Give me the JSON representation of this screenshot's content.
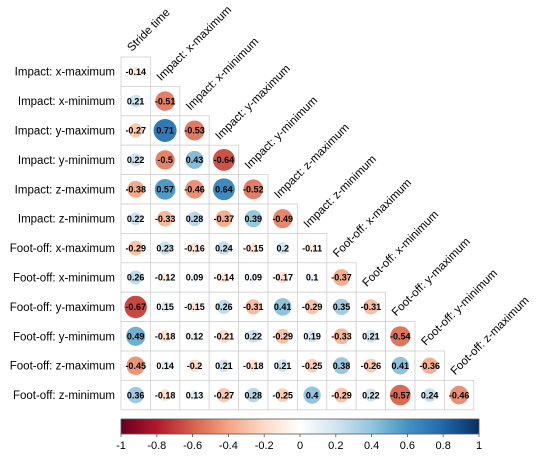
{
  "chart_data": {
    "type": "heatmap",
    "subtype": "lower-triangle correlation matrix (circle glyphs)",
    "variables": [
      "Stride time",
      "Impact: x-maximum",
      "Impact: x-minimum",
      "Impact: y-maximum",
      "Impact: y-minimum",
      "Impact: z-maximum",
      "Impact: z-minimum",
      "Foot-off: x-maximum",
      "Foot-off: x-minimum",
      "Foot-off: y-maximum",
      "Foot-off: y-minimum",
      "Foot-off: z-maximum",
      "Foot-off: z-minimum"
    ],
    "row_labels": [
      "Impact: x-maximum",
      "Impact: x-minimum",
      "Impact: y-maximum",
      "Impact: y-minimum",
      "Impact: z-maximum",
      "Impact: z-minimum",
      "Foot-off: x-maximum",
      "Foot-off: x-minimum",
      "Foot-off: y-maximum",
      "Foot-off: y-minimum",
      "Foot-off: z-maximum",
      "Foot-off: z-minimum"
    ],
    "column_labels": [
      "Stride time",
      "Impact: x-maximum",
      "Impact: x-minimum",
      "Impact: y-maximum",
      "Impact: y-minimum",
      "Impact: z-maximum",
      "Impact: z-minimum",
      "Foot-off: x-maximum",
      "Foot-off: x-minimum",
      "Foot-off: y-maximum",
      "Foot-off: y-minimum",
      "Foot-off: z-maximum"
    ],
    "values": [
      [
        -0.14
      ],
      [
        0.21,
        -0.51
      ],
      [
        -0.27,
        0.71,
        -0.53
      ],
      [
        0.22,
        -0.5,
        0.43,
        -0.64
      ],
      [
        -0.38,
        0.57,
        -0.46,
        0.64,
        -0.52
      ],
      [
        0.22,
        -0.33,
        0.28,
        -0.37,
        0.39,
        -0.49
      ],
      [
        -0.29,
        0.23,
        -0.16,
        0.24,
        -0.15,
        0.2,
        -0.11
      ],
      [
        0.26,
        -0.12,
        0.09,
        -0.14,
        0.09,
        -0.17,
        0.1,
        -0.37
      ],
      [
        -0.67,
        0.15,
        -0.15,
        0.26,
        -0.31,
        0.41,
        -0.29,
        0.35,
        -0.31
      ],
      [
        0.49,
        -0.18,
        0.12,
        -0.21,
        0.22,
        -0.29,
        0.19,
        -0.33,
        0.21,
        -0.54
      ],
      [
        -0.45,
        0.14,
        -0.2,
        0.21,
        -0.18,
        0.21,
        -0.25,
        0.38,
        -0.26,
        0.41,
        -0.36
      ],
      [
        0.36,
        -0.18,
        0.13,
        -0.27,
        0.28,
        -0.25,
        0.4,
        -0.29,
        0.22,
        -0.57,
        0.24,
        -0.46
      ]
    ],
    "value_labels": [
      [
        "-0.14"
      ],
      [
        "0.21",
        "-0.51"
      ],
      [
        "-0.27",
        "0.71",
        "-0.53"
      ],
      [
        "0.22",
        "-0.5",
        "0.43",
        "-0.64"
      ],
      [
        "-0.38",
        "0.57",
        "-0.46",
        "0.64",
        "-0.52"
      ],
      [
        "0.22",
        "-0.33",
        "0.28",
        "-0.37",
        "0.39",
        "-0.49"
      ],
      [
        "-0.29",
        "0.23",
        "-0.16",
        "0.24",
        "-0.15",
        "0.2",
        "-0.11"
      ],
      [
        "0.26",
        "-0.12",
        "0.09",
        "-0.14",
        "0.09",
        "-0.17",
        "0.1",
        "-0.37"
      ],
      [
        "-0.67",
        "0.15",
        "-0.15",
        "0.26",
        "-0.31",
        "0.41",
        "-0.29",
        "0.35",
        "-0.31"
      ],
      [
        "0.49",
        "-0.18",
        "0.12",
        "-0.21",
        "0.22",
        "-0.29",
        "0.19",
        "-0.33",
        "0.21",
        "-0.54"
      ],
      [
        "-0.45",
        "0.14",
        "-0.2",
        "0.21",
        "-0.18",
        "0.21",
        "-0.25",
        "0.38",
        "-0.26",
        "0.41",
        "-0.36"
      ],
      [
        "0.36",
        "-0.18",
        "0.13",
        "-0.27",
        "0.28",
        "-0.25",
        "0.4",
        "-0.29",
        "0.22",
        "-0.57",
        "0.24",
        "-0.46"
      ]
    ],
    "color_scale": {
      "range": [
        -1,
        1
      ],
      "ticks": [
        "-1",
        "-0.8",
        "-0.6",
        "-0.4",
        "-0.2",
        "0",
        "0.2",
        "0.4",
        "0.6",
        "0.8",
        "1"
      ],
      "stops": [
        "#67001f",
        "#b2182b",
        "#d6604d",
        "#f4a582",
        "#fddbc7",
        "#ffffff",
        "#d1e5f0",
        "#92c5de",
        "#4393c3",
        "#2166ac",
        "#053061"
      ]
    },
    "title": "",
    "legend": "bottom"
  }
}
